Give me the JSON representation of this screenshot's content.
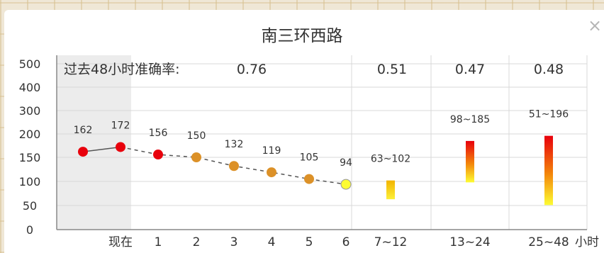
{
  "popup": {
    "title": "南三环西路",
    "close_icon": "×"
  },
  "accuracy": {
    "label": "过去48小时准确率:",
    "values": [
      "0.76",
      "0.51",
      "0.47",
      "0.48"
    ]
  },
  "colors": {
    "red": "#e8000c",
    "orange": "#dc9128",
    "yellow": "#fdfc33",
    "line": "#555555",
    "grid": "#d9d9d9",
    "history_bg": "#ececec"
  },
  "chart_data": {
    "type": "line",
    "ylim": [
      0,
      500
    ],
    "yticks": [
      0,
      50,
      100,
      150,
      200,
      300,
      400,
      500
    ],
    "x_labels": [
      "现在",
      "1",
      "2",
      "3",
      "4",
      "5",
      "6",
      "7~12",
      "13~24",
      "25~48"
    ],
    "x_unit": "小时",
    "points": [
      {
        "value": 162,
        "label": "162",
        "color": "red"
      },
      {
        "value": 172,
        "label": "172",
        "color": "red"
      },
      {
        "value": 156,
        "label": "156",
        "color": "red"
      },
      {
        "value": 150,
        "label": "150",
        "color": "orange"
      },
      {
        "value": 132,
        "label": "132",
        "color": "orange"
      },
      {
        "value": 119,
        "label": "119",
        "color": "orange"
      },
      {
        "value": 105,
        "label": "105",
        "color": "orange"
      },
      {
        "value": 94,
        "label": "94",
        "color": "yellow"
      }
    ],
    "ranges": [
      {
        "category": "7~12",
        "min": 63,
        "max": 102,
        "label": "63~102"
      },
      {
        "category": "13~24",
        "min": 98,
        "max": 185,
        "label": "98~185"
      },
      {
        "category": "25~48",
        "min": 51,
        "max": 196,
        "label": "51~196"
      }
    ]
  }
}
